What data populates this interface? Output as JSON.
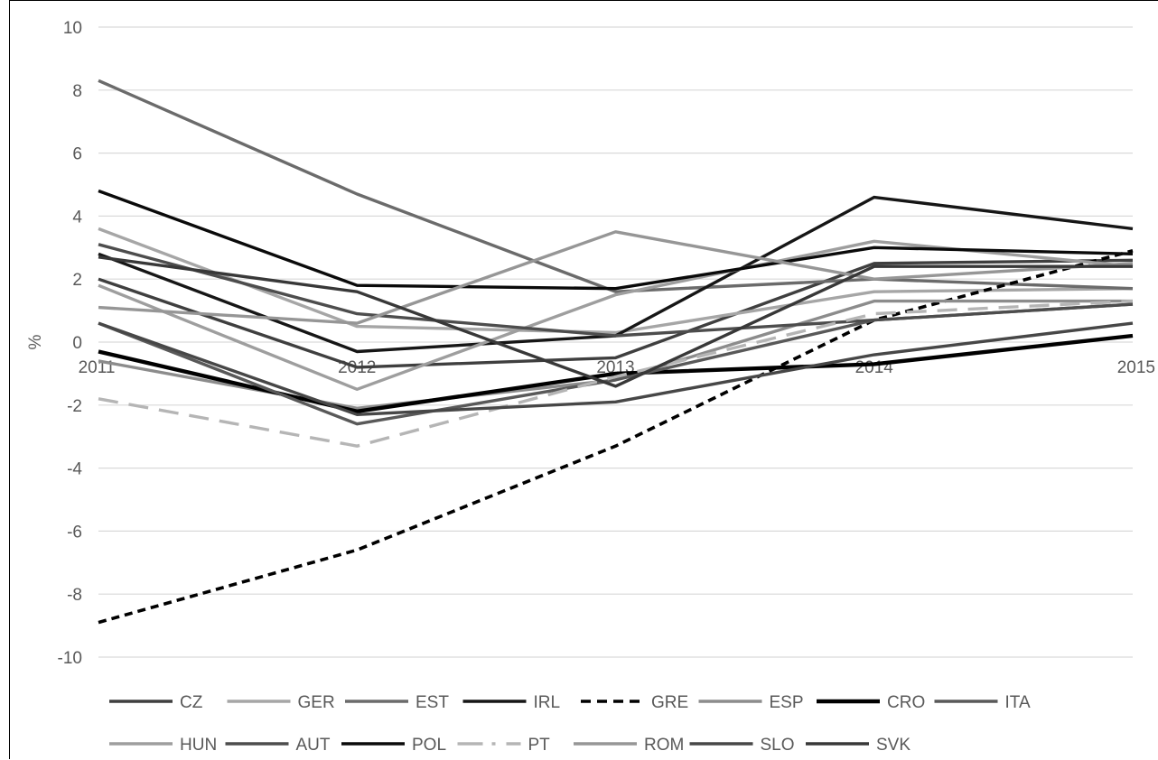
{
  "chart_data": {
    "type": "line",
    "title": "",
    "xlabel": "",
    "ylabel": "%",
    "x": [
      "2011",
      "2012",
      "2013",
      "2014",
      "2015"
    ],
    "ylim": [
      -10,
      10
    ],
    "yticks": [
      10,
      8,
      6,
      4,
      2,
      0,
      -2,
      -4,
      -6,
      -8,
      -10
    ],
    "yticklabels": [
      "10",
      "8",
      "6",
      "4",
      "2",
      "0",
      "-2",
      "-4",
      "-6",
      "-8",
      "-10"
    ],
    "xticklabels": [
      "2011",
      "2012",
      "2013",
      "2014",
      "2015"
    ],
    "grid": "horizontal",
    "legend_position": "bottom",
    "series": [
      {
        "name": "CZ",
        "values": [
          2.0,
          -0.8,
          -0.5,
          2.5,
          2.6
        ],
        "color": "#3f3f3f",
        "dash": "solid"
      },
      {
        "name": "GER",
        "values": [
          3.6,
          0.5,
          0.3,
          1.6,
          1.7
        ],
        "color": "#a6a6a6",
        "dash": "solid"
      },
      {
        "name": "EST",
        "values": [
          8.3,
          4.7,
          1.6,
          2.0,
          1.7
        ],
        "color": "#6b6b6b",
        "dash": "solid"
      },
      {
        "name": "IRL",
        "values": [
          2.8,
          -0.3,
          0.2,
          4.6,
          3.6
        ],
        "color": "#161616",
        "dash": "solid"
      },
      {
        "name": "GRE",
        "values": [
          -8.9,
          -6.6,
          -3.3,
          0.7,
          2.9
        ],
        "color": "#000000",
        "dash": "dash"
      },
      {
        "name": "ESP",
        "values": [
          -0.6,
          -2.1,
          -1.2,
          1.3,
          1.3
        ],
        "color": "#8c8c8c",
        "dash": "solid"
      },
      {
        "name": "CRO",
        "values": [
          -0.3,
          -2.2,
          -1.0,
          -0.7,
          0.2
        ],
        "color": "#000000",
        "dash": "solid"
      },
      {
        "name": "ITA",
        "values": [
          0.6,
          -2.6,
          -1.2,
          0.7,
          1.2
        ],
        "color": "#595959",
        "dash": "solid"
      },
      {
        "name": "HUN",
        "values": [
          1.8,
          -1.5,
          1.5,
          3.2,
          2.4
        ],
        "color": "#9e9e9e",
        "dash": "solid"
      },
      {
        "name": "AUT",
        "values": [
          3.1,
          0.9,
          0.2,
          0.7,
          1.2
        ],
        "color": "#4d4d4d",
        "dash": "solid"
      },
      {
        "name": "POL",
        "values": [
          4.8,
          1.8,
          1.7,
          3.0,
          2.8
        ],
        "color": "#0a0a0a",
        "dash": "solid"
      },
      {
        "name": "PT",
        "values": [
          -1.8,
          -3.3,
          -1.1,
          0.9,
          1.3
        ],
        "color": "#b5b5b5",
        "dash": "longdash"
      },
      {
        "name": "ROM",
        "values": [
          1.1,
          0.6,
          3.5,
          2.0,
          2.5
        ],
        "color": "#969696",
        "dash": "solid"
      },
      {
        "name": "SLO",
        "values": [
          0.6,
          -2.3,
          -1.9,
          -0.4,
          0.6
        ],
        "color": "#474747",
        "dash": "solid"
      },
      {
        "name": "SVK",
        "values": [
          2.7,
          1.6,
          -1.4,
          2.4,
          2.4
        ],
        "color": "#383838",
        "dash": "solid"
      }
    ]
  }
}
